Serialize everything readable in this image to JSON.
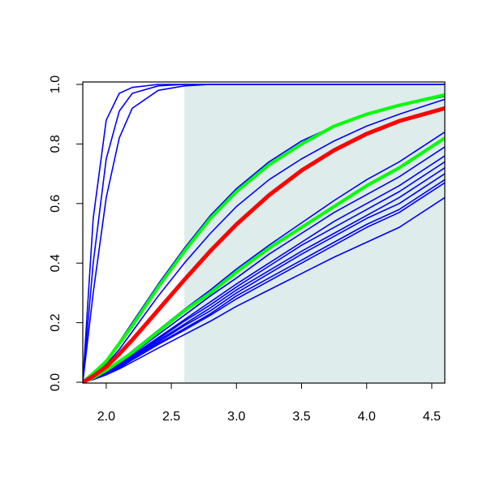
{
  "chart_data": {
    "type": "line",
    "x": [
      1.82,
      1.9,
      2.0,
      2.1,
      2.2,
      2.4,
      2.6,
      2.8,
      3.0,
      3.25,
      3.5,
      3.75,
      4.0,
      4.25,
      4.6
    ],
    "series": [
      {
        "color": "#0000ff",
        "values": [
          0,
          0.55,
          0.88,
          0.97,
          0.99,
          1,
          1,
          1,
          1,
          1,
          1,
          1,
          1,
          1,
          1
        ]
      },
      {
        "color": "#0000ff",
        "values": [
          0,
          0.4,
          0.75,
          0.91,
          0.97,
          0.995,
          1,
          1,
          1,
          1,
          1,
          1,
          1,
          1,
          1
        ]
      },
      {
        "color": "#0000ff",
        "values": [
          0,
          0.3,
          0.62,
          0.82,
          0.92,
          0.98,
          0.995,
          1,
          1,
          1,
          1,
          1,
          1,
          1,
          1
        ]
      },
      {
        "color": "#0000ff",
        "values": [
          0,
          0.03,
          0.075,
          0.135,
          0.2,
          0.33,
          0.45,
          0.56,
          0.65,
          0.74,
          0.81,
          0.86,
          0.9,
          0.93,
          0.96
        ]
      },
      {
        "color": "#0000ff",
        "values": [
          0,
          0.025,
          0.06,
          0.11,
          0.17,
          0.29,
          0.4,
          0.5,
          0.59,
          0.68,
          0.75,
          0.81,
          0.86,
          0.9,
          0.95
        ]
      },
      {
        "color": "#0000ff",
        "values": [
          0,
          0.015,
          0.04,
          0.07,
          0.105,
          0.175,
          0.245,
          0.31,
          0.38,
          0.46,
          0.535,
          0.61,
          0.68,
          0.74,
          0.84
        ]
      },
      {
        "color": "#0000ff",
        "values": [
          0,
          0.013,
          0.035,
          0.065,
          0.095,
          0.16,
          0.225,
          0.29,
          0.35,
          0.43,
          0.5,
          0.57,
          0.63,
          0.69,
          0.79
        ]
      },
      {
        "color": "#0000ff",
        "values": [
          0,
          0.012,
          0.033,
          0.06,
          0.09,
          0.15,
          0.21,
          0.27,
          0.33,
          0.4,
          0.47,
          0.54,
          0.6,
          0.66,
          0.76
        ]
      },
      {
        "color": "#0000ff",
        "values": [
          0,
          0.012,
          0.032,
          0.058,
          0.087,
          0.145,
          0.205,
          0.26,
          0.32,
          0.39,
          0.46,
          0.52,
          0.58,
          0.64,
          0.74
        ]
      },
      {
        "color": "#0000ff",
        "values": [
          0,
          0.011,
          0.03,
          0.055,
          0.083,
          0.14,
          0.195,
          0.25,
          0.31,
          0.375,
          0.44,
          0.5,
          0.56,
          0.62,
          0.72
        ]
      },
      {
        "color": "#0000ff",
        "values": [
          0,
          0.011,
          0.029,
          0.053,
          0.08,
          0.135,
          0.19,
          0.24,
          0.3,
          0.365,
          0.43,
          0.49,
          0.55,
          0.6,
          0.7
        ]
      },
      {
        "color": "#0000ff",
        "values": [
          0,
          0.01,
          0.028,
          0.05,
          0.077,
          0.13,
          0.18,
          0.23,
          0.29,
          0.35,
          0.41,
          0.47,
          0.53,
          0.58,
          0.68
        ]
      },
      {
        "color": "#0000ff",
        "values": [
          0,
          0.01,
          0.027,
          0.049,
          0.075,
          0.127,
          0.175,
          0.225,
          0.28,
          0.34,
          0.4,
          0.46,
          0.52,
          0.57,
          0.67
        ]
      },
      {
        "color": "#0000ff",
        "values": [
          0,
          0.009,
          0.025,
          0.045,
          0.068,
          0.115,
          0.16,
          0.205,
          0.255,
          0.31,
          0.365,
          0.42,
          0.47,
          0.52,
          0.62
        ]
      },
      {
        "color": "#00ff00",
        "values": [
          0,
          0.03,
          0.07,
          0.13,
          0.19,
          0.32,
          0.44,
          0.55,
          0.64,
          0.73,
          0.8,
          0.86,
          0.9,
          0.93,
          0.965
        ]
      },
      {
        "color": "#00ff00",
        "values": [
          0,
          0.015,
          0.04,
          0.07,
          0.1,
          0.17,
          0.24,
          0.3,
          0.37,
          0.45,
          0.52,
          0.59,
          0.66,
          0.72,
          0.82
        ]
      },
      {
        "color": "#ff0000",
        "values": [
          0,
          0.02,
          0.052,
          0.095,
          0.142,
          0.243,
          0.344,
          0.441,
          0.53,
          0.628,
          0.711,
          0.779,
          0.834,
          0.877,
          0.92
        ]
      }
    ],
    "shaded_region": {
      "x": [
        2.6,
        4.6
      ],
      "color": "#deeceb"
    },
    "xlim": [
      1.82,
      4.6
    ],
    "ylim": [
      0,
      1
    ],
    "xticks": [
      {
        "value": 2,
        "label": "2.0"
      },
      {
        "value": 2.5,
        "label": "2.5"
      },
      {
        "value": 3,
        "label": "3.0"
      },
      {
        "value": 3.5,
        "label": "3.5"
      },
      {
        "value": 4,
        "label": "4.0"
      },
      {
        "value": 4.5,
        "label": "4.5"
      }
    ],
    "yticks": [
      {
        "value": 0,
        "label": "0.0"
      },
      {
        "value": 0.2,
        "label": "0.2"
      },
      {
        "value": 0.4,
        "label": "0.4"
      },
      {
        "value": 0.6,
        "label": "0.6"
      },
      {
        "value": 0.8,
        "label": "0.8"
      },
      {
        "value": 1,
        "label": "1.0"
      }
    ]
  }
}
